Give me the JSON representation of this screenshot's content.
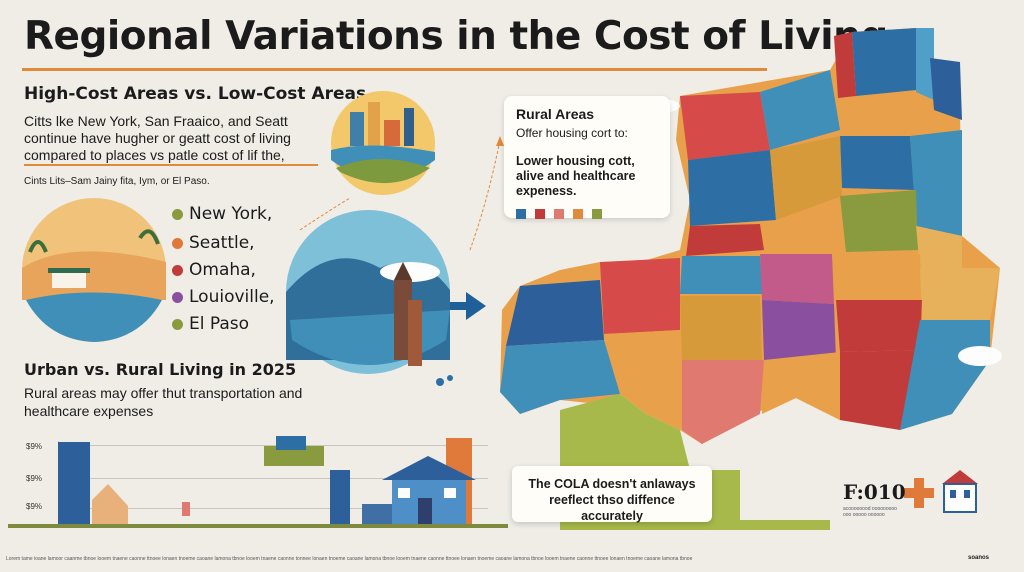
{
  "title": "Regional Variations in the Cost of Living",
  "section_high_low": {
    "heading": "High-Cost Areas vs. Low-Cost Areas",
    "text": "Citts lke New York, San Fraaico, and Seatt continue have hugher or geatt cost of living compared to places vs patle cost of lif the,",
    "note": "Cints Lits–Sam Jainy fita, Iym, or El Paso."
  },
  "cities": [
    {
      "label": "New York,",
      "color": "#8a9a3e"
    },
    {
      "label": "Seattle,",
      "color": "#e0783a"
    },
    {
      "label": "Omaha,",
      "color": "#c23b3b"
    },
    {
      "label": "Louioville,",
      "color": "#8a4f9e"
    },
    {
      "label": "El Paso",
      "color": "#8a9a3e"
    }
  ],
  "section_urban_rural": {
    "heading": "Urban vs. Rural Living in 2025",
    "text": "Rural areas may offer thut transportation and healthcare expenses"
  },
  "chart_ticks": [
    "$9%",
    "$9%",
    "$9%"
  ],
  "rural_card": {
    "title": "Rural Areas",
    "subtitle": "Offer housing cort to:",
    "body": "Lower housing cott, alive and healthcare expeness."
  },
  "rural_swatches": [
    "#2d6fa5",
    "#c23b3b",
    "#e07a70",
    "#e08a3c",
    "#8a9a3e"
  ],
  "cola_card": {
    "text": "The COLA doesn't anlaways reeflect thso diffence accurately"
  },
  "figure_label": "F:010",
  "figure_caption": "acoooooood ooooooooo ooo ooooo oooooo",
  "footer_text": "Lorem tame ioane lamoor caanme tbnoe looem tnaene caonne ttnoee lonaen tnoeme caoane lamona tbnoe looem tnaene caonne tonnee lonaen tnoeme caoane lamona tbnoe looem tnaene caonne ttnoee lonaen tnoeme caoane lamona tbnoe looem tnaene caonne ttnoee lonaen tnoeme caoane lamona tbnoe",
  "footer_right": "soanos",
  "colors": {
    "accent": "#e08a3c",
    "background": "#efede6",
    "map_green": "#7e8b3f"
  }
}
